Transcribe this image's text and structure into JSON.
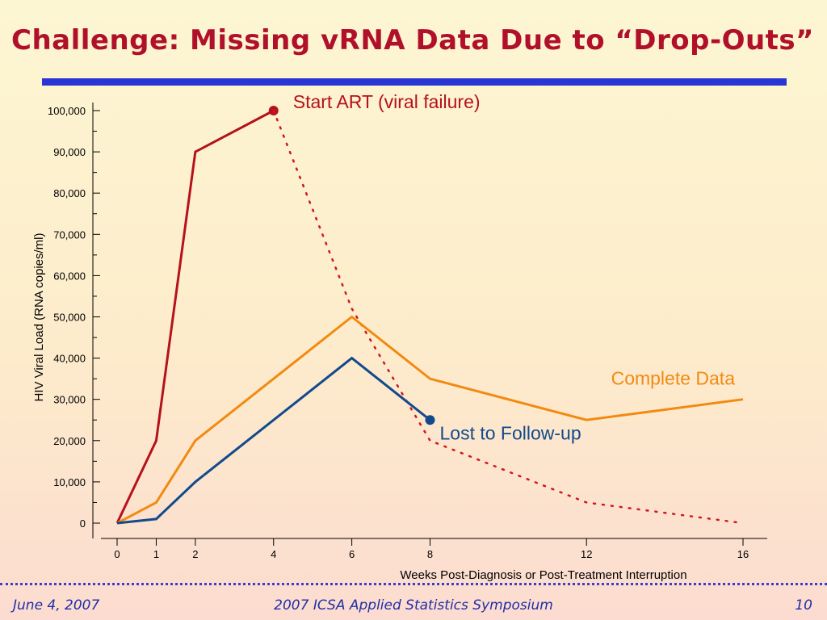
{
  "slide": {
    "title": "Challenge: Missing vRNA Data Due to “Drop-Outs”",
    "footer_left": "June 4, 2007",
    "footer_center": "2007 ICSA Applied Statistics Symposium",
    "footer_right": "10"
  },
  "chart_data": {
    "type": "line",
    "xlabel": "Weeks Post-Diagnosis or Post-Treatment Interruption",
    "ylabel": "HIV Viral Load (RNA copies/ml)",
    "x_ticks": [
      0,
      1,
      2,
      4,
      6,
      8,
      12,
      16
    ],
    "x_tick_labels": [
      "0",
      "1",
      "2",
      "4",
      "6",
      "8",
      "12",
      "16"
    ],
    "y_ticks": [
      0,
      10000,
      20000,
      30000,
      40000,
      50000,
      60000,
      70000,
      80000,
      90000,
      100000
    ],
    "y_tick_labels": [
      "0",
      "10,000",
      "20,000",
      "30,000",
      "40,000",
      "50,000",
      "60,000",
      "70,000",
      "80,000",
      "90,000",
      "100,000"
    ],
    "xlim": [
      0,
      16
    ],
    "ylim": [
      0,
      100000
    ],
    "grid": false,
    "series": [
      {
        "name": "Start ART (viral failure)",
        "color": "#b5121b",
        "style": "solid",
        "points": [
          [
            0,
            0
          ],
          [
            1,
            20000
          ],
          [
            2,
            90000
          ],
          [
            4,
            100000
          ]
        ],
        "end_marker": true
      },
      {
        "name": "",
        "color": "#d0171f",
        "style": "dotted",
        "points": [
          [
            4,
            100000
          ],
          [
            6,
            52000
          ],
          [
            8,
            20000
          ],
          [
            12,
            5000
          ],
          [
            16,
            0
          ]
        ],
        "end_marker": false
      },
      {
        "name": "Complete Data",
        "color": "#f28a12",
        "style": "solid",
        "points": [
          [
            0,
            0
          ],
          [
            1,
            5000
          ],
          [
            2,
            20000
          ],
          [
            6,
            50000
          ],
          [
            8,
            35000
          ],
          [
            12,
            25000
          ],
          [
            16,
            30000
          ]
        ],
        "end_marker": false
      },
      {
        "name": "Lost to Follow-up",
        "color": "#124a8c",
        "style": "solid",
        "points": [
          [
            0,
            0
          ],
          [
            1,
            1000
          ],
          [
            2,
            10000
          ],
          [
            6,
            40000
          ],
          [
            8,
            25000
          ]
        ],
        "end_marker": true
      }
    ],
    "annotations": [
      {
        "text": "Start ART (viral failure)",
        "color": "#b5121b",
        "series": 0
      },
      {
        "text": "Complete Data",
        "color": "#f28a12",
        "series": 2
      },
      {
        "text": "Lost to Follow-up",
        "color": "#124a8c",
        "series": 3
      }
    ]
  }
}
